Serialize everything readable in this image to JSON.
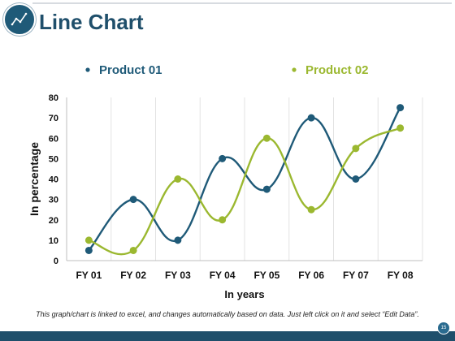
{
  "slide": {
    "title": "Line Chart",
    "footnote": "This graph/chart is linked to excel, and changes automatically based on data. Just left click on it and select “Edit Data”.",
    "page_number": "15"
  },
  "colors": {
    "title": "#1f4f6b",
    "product01": "#1f5a78",
    "product02": "#9bb830",
    "bottom_bar": "#1f4f6b"
  },
  "chart_data": {
    "type": "line",
    "xlabel": "In years",
    "ylabel": "In percentage",
    "categories": [
      "FY 01",
      "FY 02",
      "FY 03",
      "FY 04",
      "FY 05",
      "FY 06",
      "FY 07",
      "FY 08"
    ],
    "ylim": [
      0,
      80
    ],
    "yticks": [
      0,
      10,
      20,
      30,
      40,
      50,
      60,
      70,
      80
    ],
    "legend_position": "top",
    "grid": true,
    "smooth": true,
    "series": [
      {
        "name": "Product 01",
        "color": "#1f5a78",
        "values": [
          5,
          30,
          10,
          50,
          35,
          70,
          40,
          75
        ]
      },
      {
        "name": "Product 02",
        "color": "#9bb830",
        "values": [
          10,
          5,
          40,
          20,
          60,
          25,
          55,
          65
        ]
      }
    ]
  }
}
